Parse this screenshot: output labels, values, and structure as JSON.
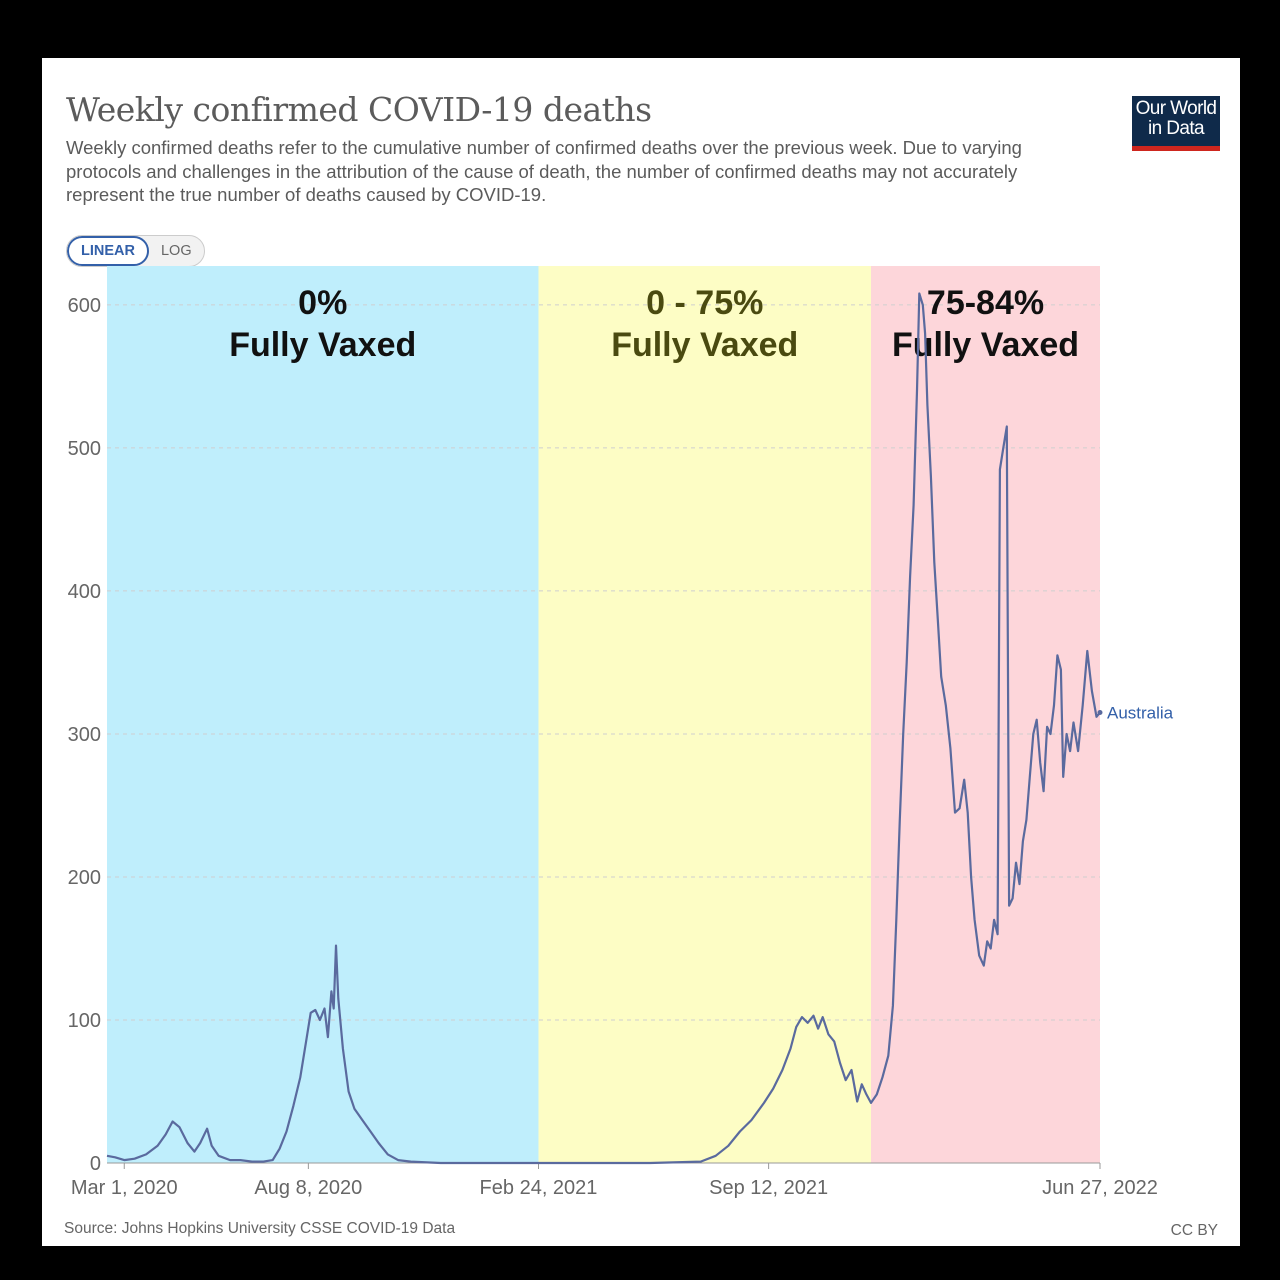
{
  "header": {
    "title": "Weekly confirmed COVID-19 deaths",
    "subtitle": "Weekly confirmed deaths refer to the cumulative number of confirmed deaths over the previous week. Due to varying protocols and challenges in the attribution of the cause of death, the number of confirmed deaths may not accurately represent the true number of deaths caused by COVID-19.",
    "logo_line1": "Our World",
    "logo_line2": "in Data"
  },
  "toggle": {
    "linear_label": "LINEAR",
    "log_label": "LOG",
    "selected": "LINEAR"
  },
  "footer": {
    "source": "Source: Johns Hopkins University CSSE COVID-19 Data",
    "license": "CC BY"
  },
  "colors": {
    "line": "#5a6a9e",
    "band_blue": "#bfeefc",
    "band_yellow": "#fdfdc5",
    "band_red": "#fdd6da",
    "accent": "#3360a9"
  },
  "chart_data": {
    "type": "line",
    "title": "Weekly confirmed COVID-19 deaths",
    "xlabel": "",
    "ylabel": "",
    "ylim": [
      0,
      630
    ],
    "xlim": [
      "2020-02-15",
      "2022-06-27"
    ],
    "grid": true,
    "y_ticks": [
      0,
      100,
      200,
      300,
      400,
      500,
      600
    ],
    "x_ticks": [
      {
        "date": "2020-03-01",
        "label": "Mar 1, 2020"
      },
      {
        "date": "2020-08-08",
        "label": "Aug 8, 2020"
      },
      {
        "date": "2021-02-24",
        "label": "Feb 24, 2021"
      },
      {
        "date": "2021-09-12",
        "label": "Sep 12, 2021"
      },
      {
        "date": "2022-06-27",
        "label": "Jun 27, 2022"
      }
    ],
    "bands": [
      {
        "start": "2020-02-15",
        "end": "2021-02-24",
        "color": "#bfeefc",
        "line1": "0%",
        "line2": "Fully Vaxed",
        "text_color": "#111111"
      },
      {
        "start": "2021-02-24",
        "end": "2021-12-10",
        "color": "#fdfdc5",
        "line1": "0 - 75%",
        "line2": "Fully Vaxed",
        "text_color": "#4a4a10"
      },
      {
        "start": "2021-12-10",
        "end": "2022-06-27",
        "color": "#fdd6da",
        "line1": "75-84%",
        "line2": "Fully Vaxed",
        "text_color": "#111111"
      }
    ],
    "series": [
      {
        "name": "Australia",
        "color": "#5a6a9e",
        "points": [
          [
            "2020-02-15",
            5
          ],
          [
            "2020-02-22",
            4
          ],
          [
            "2020-03-01",
            2
          ],
          [
            "2020-03-10",
            3
          ],
          [
            "2020-03-20",
            6
          ],
          [
            "2020-03-30",
            12
          ],
          [
            "2020-04-06",
            20
          ],
          [
            "2020-04-12",
            29
          ],
          [
            "2020-04-18",
            25
          ],
          [
            "2020-04-25",
            14
          ],
          [
            "2020-05-01",
            8
          ],
          [
            "2020-05-06",
            14
          ],
          [
            "2020-05-12",
            24
          ],
          [
            "2020-05-16",
            12
          ],
          [
            "2020-05-22",
            5
          ],
          [
            "2020-06-01",
            2
          ],
          [
            "2020-06-10",
            2
          ],
          [
            "2020-06-20",
            1
          ],
          [
            "2020-06-30",
            1
          ],
          [
            "2020-07-08",
            2
          ],
          [
            "2020-07-14",
            10
          ],
          [
            "2020-07-20",
            22
          ],
          [
            "2020-07-26",
            40
          ],
          [
            "2020-08-01",
            60
          ],
          [
            "2020-08-06",
            85
          ],
          [
            "2020-08-10",
            105
          ],
          [
            "2020-08-14",
            107
          ],
          [
            "2020-08-18",
            100
          ],
          [
            "2020-08-22",
            108
          ],
          [
            "2020-08-25",
            88
          ],
          [
            "2020-08-28",
            120
          ],
          [
            "2020-08-30",
            108
          ],
          [
            "2020-09-01",
            152
          ],
          [
            "2020-09-03",
            115
          ],
          [
            "2020-09-07",
            80
          ],
          [
            "2020-09-12",
            50
          ],
          [
            "2020-09-17",
            38
          ],
          [
            "2020-09-24",
            30
          ],
          [
            "2020-10-01",
            22
          ],
          [
            "2020-10-08",
            14
          ],
          [
            "2020-10-16",
            6
          ],
          [
            "2020-10-25",
            2
          ],
          [
            "2020-11-05",
            1
          ],
          [
            "2020-12-01",
            0
          ],
          [
            "2021-01-01",
            0
          ],
          [
            "2021-02-24",
            0
          ],
          [
            "2021-04-01",
            0
          ],
          [
            "2021-06-01",
            0
          ],
          [
            "2021-07-15",
            1
          ],
          [
            "2021-07-28",
            5
          ],
          [
            "2021-08-08",
            12
          ],
          [
            "2021-08-18",
            22
          ],
          [
            "2021-08-28",
            30
          ],
          [
            "2021-09-08",
            42
          ],
          [
            "2021-09-16",
            52
          ],
          [
            "2021-09-24",
            65
          ],
          [
            "2021-10-01",
            80
          ],
          [
            "2021-10-06",
            95
          ],
          [
            "2021-10-11",
            102
          ],
          [
            "2021-10-16",
            98
          ],
          [
            "2021-10-21",
            103
          ],
          [
            "2021-10-25",
            94
          ],
          [
            "2021-10-29",
            102
          ],
          [
            "2021-11-03",
            90
          ],
          [
            "2021-11-08",
            85
          ],
          [
            "2021-11-13",
            70
          ],
          [
            "2021-11-18",
            58
          ],
          [
            "2021-11-23",
            65
          ],
          [
            "2021-11-28",
            43
          ],
          [
            "2021-12-02",
            55
          ],
          [
            "2021-12-06",
            48
          ],
          [
            "2021-12-10",
            42
          ],
          [
            "2021-12-15",
            48
          ],
          [
            "2021-12-20",
            60
          ],
          [
            "2021-12-25",
            75
          ],
          [
            "2021-12-29",
            110
          ],
          [
            "2022-01-01",
            170
          ],
          [
            "2022-01-04",
            240
          ],
          [
            "2022-01-07",
            300
          ],
          [
            "2022-01-10",
            350
          ],
          [
            "2022-01-13",
            410
          ],
          [
            "2022-01-16",
            460
          ],
          [
            "2022-01-19",
            540
          ],
          [
            "2022-01-21",
            608
          ],
          [
            "2022-01-24",
            600
          ],
          [
            "2022-01-26",
            580
          ],
          [
            "2022-01-28",
            530
          ],
          [
            "2022-01-31",
            480
          ],
          [
            "2022-02-03",
            420
          ],
          [
            "2022-02-06",
            380
          ],
          [
            "2022-02-09",
            340
          ],
          [
            "2022-02-13",
            320
          ],
          [
            "2022-02-17",
            290
          ],
          [
            "2022-02-21",
            245
          ],
          [
            "2022-02-25",
            248
          ],
          [
            "2022-03-01",
            268
          ],
          [
            "2022-03-04",
            245
          ],
          [
            "2022-03-07",
            200
          ],
          [
            "2022-03-10",
            170
          ],
          [
            "2022-03-14",
            145
          ],
          [
            "2022-03-18",
            138
          ],
          [
            "2022-03-21",
            155
          ],
          [
            "2022-03-24",
            150
          ],
          [
            "2022-03-27",
            170
          ],
          [
            "2022-03-30",
            160
          ],
          [
            "2022-04-01",
            485
          ],
          [
            "2022-04-04",
            500
          ],
          [
            "2022-04-07",
            515
          ],
          [
            "2022-04-09",
            180
          ],
          [
            "2022-04-12",
            185
          ],
          [
            "2022-04-15",
            210
          ],
          [
            "2022-04-18",
            195
          ],
          [
            "2022-04-21",
            225
          ],
          [
            "2022-04-24",
            240
          ],
          [
            "2022-04-27",
            270
          ],
          [
            "2022-04-30",
            300
          ],
          [
            "2022-05-03",
            310
          ],
          [
            "2022-05-06",
            280
          ],
          [
            "2022-05-09",
            260
          ],
          [
            "2022-05-12",
            305
          ],
          [
            "2022-05-15",
            300
          ],
          [
            "2022-05-18",
            320
          ],
          [
            "2022-05-21",
            355
          ],
          [
            "2022-05-24",
            345
          ],
          [
            "2022-05-26",
            270
          ],
          [
            "2022-05-29",
            300
          ],
          [
            "2022-06-01",
            288
          ],
          [
            "2022-06-04",
            308
          ],
          [
            "2022-06-08",
            288
          ],
          [
            "2022-06-12",
            320
          ],
          [
            "2022-06-16",
            358
          ],
          [
            "2022-06-20",
            330
          ],
          [
            "2022-06-24",
            312
          ],
          [
            "2022-06-27",
            315
          ]
        ]
      }
    ]
  }
}
